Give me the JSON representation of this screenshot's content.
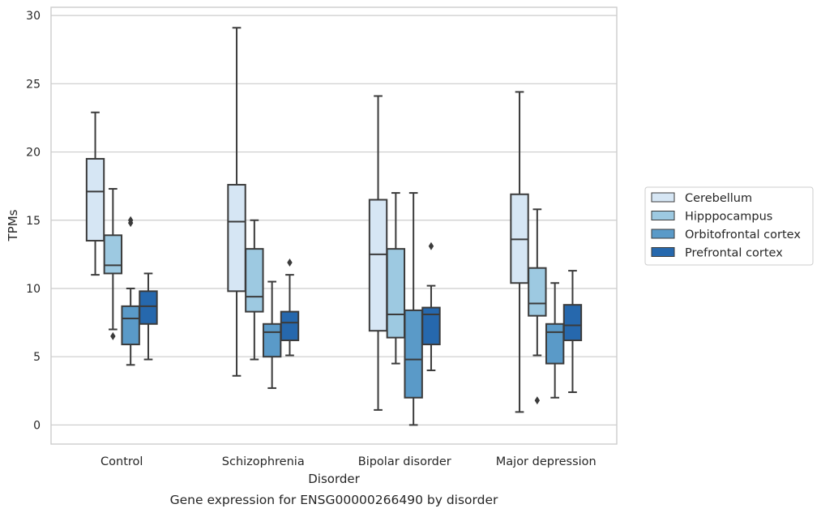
{
  "chart_data": {
    "type": "box",
    "caption": "Gene expression for ENSG00000266490 by disorder",
    "xlabel": "Disorder",
    "ylabel": "TPMs",
    "ylim": [
      -1.4,
      30.6
    ],
    "yticks": [
      0,
      5,
      10,
      15,
      20,
      25,
      30
    ],
    "grid": true,
    "legend_position": "right",
    "categories": [
      "Control",
      "Schizophrenia",
      "Bipolar disorder",
      "Major depression"
    ],
    "series": [
      {
        "name": "Cerebellum",
        "color": "#d6e6f4",
        "boxes": [
          {
            "whisker_low": 11.0,
            "q1": 13.5,
            "median": 17.1,
            "q3": 19.5,
            "whisker_high": 22.9,
            "outliers": []
          },
          {
            "whisker_low": 3.6,
            "q1": 9.8,
            "median": 14.9,
            "q3": 17.6,
            "whisker_high": 29.1,
            "outliers": []
          },
          {
            "whisker_low": 1.1,
            "q1": 6.9,
            "median": 12.5,
            "q3": 16.5,
            "whisker_high": 24.1,
            "outliers": []
          },
          {
            "whisker_low": 0.95,
            "q1": 10.4,
            "median": 13.6,
            "q3": 16.9,
            "whisker_high": 24.4,
            "outliers": []
          }
        ]
      },
      {
        "name": "Hipppocampus",
        "color": "#9dc9e1",
        "boxes": [
          {
            "whisker_low": 7.0,
            "q1": 11.1,
            "median": 11.7,
            "q3": 13.9,
            "whisker_high": 17.3,
            "outliers": [
              6.5
            ]
          },
          {
            "whisker_low": 4.8,
            "q1": 8.3,
            "median": 9.4,
            "q3": 12.9,
            "whisker_high": 15.0,
            "outliers": []
          },
          {
            "whisker_low": 4.5,
            "q1": 6.4,
            "median": 8.1,
            "q3": 12.9,
            "whisker_high": 17.0,
            "outliers": []
          },
          {
            "whisker_low": 5.1,
            "q1": 8.0,
            "median": 8.9,
            "q3": 11.5,
            "whisker_high": 15.8,
            "outliers": [
              1.8
            ]
          }
        ]
      },
      {
        "name": "Orbitofrontal cortex",
        "color": "#5a9ac8",
        "boxes": [
          {
            "whisker_low": 4.4,
            "q1": 5.9,
            "median": 7.8,
            "q3": 8.7,
            "whisker_high": 10.0,
            "outliers": [
              14.8,
              15.0
            ]
          },
          {
            "whisker_low": 2.7,
            "q1": 5.0,
            "median": 6.8,
            "q3": 7.4,
            "whisker_high": 10.5,
            "outliers": []
          },
          {
            "whisker_low": 0.0,
            "q1": 2.0,
            "median": 4.8,
            "q3": 8.4,
            "whisker_high": 17.0,
            "outliers": []
          },
          {
            "whisker_low": 2.0,
            "q1": 4.5,
            "median": 6.8,
            "q3": 7.4,
            "whisker_high": 10.4,
            "outliers": []
          }
        ]
      },
      {
        "name": "Prefrontal cortex",
        "color": "#2668ad",
        "boxes": [
          {
            "whisker_low": 4.8,
            "q1": 7.4,
            "median": 8.7,
            "q3": 9.8,
            "whisker_high": 11.1,
            "outliers": []
          },
          {
            "whisker_low": 5.1,
            "q1": 6.2,
            "median": 7.5,
            "q3": 8.3,
            "whisker_high": 11.0,
            "outliers": [
              11.9
            ]
          },
          {
            "whisker_low": 4.0,
            "q1": 5.9,
            "median": 8.1,
            "q3": 8.6,
            "whisker_high": 10.2,
            "outliers": [
              13.1
            ]
          },
          {
            "whisker_low": 2.4,
            "q1": 6.2,
            "median": 7.3,
            "q3": 8.8,
            "whisker_high": 11.3,
            "outliers": []
          }
        ]
      }
    ]
  }
}
